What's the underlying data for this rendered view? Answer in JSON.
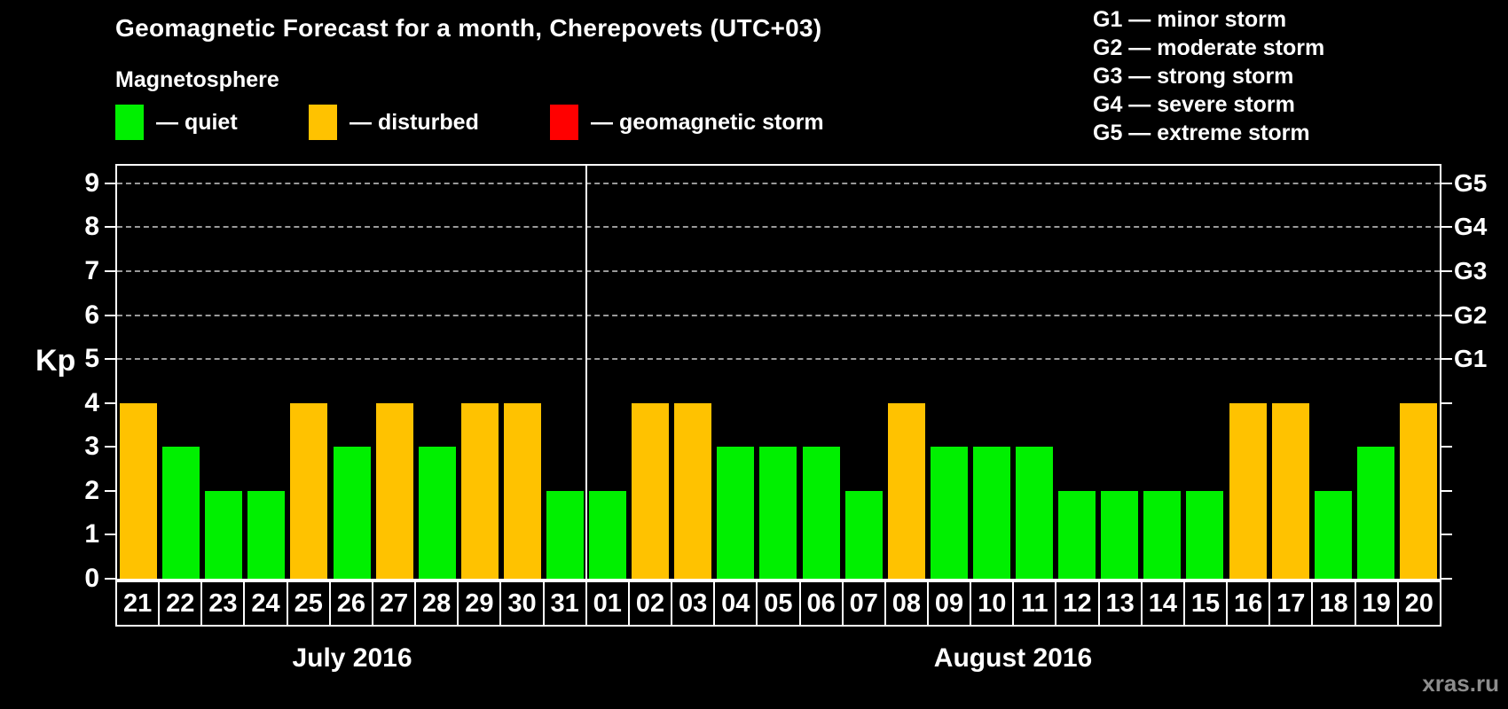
{
  "title": "Geomagnetic Forecast for a month, Cherepovets (UTC+03)",
  "subtitle": "Magnetosphere",
  "magnetosphere_legend": [
    {
      "name": "quiet-swatch",
      "label": "— quiet",
      "state": "quiet"
    },
    {
      "name": "disturbed-swatch",
      "label": "— disturbed",
      "state": "disturbed"
    },
    {
      "name": "storm-swatch",
      "label": "— geomagnetic storm",
      "state": "storm"
    }
  ],
  "g_scale_legend": [
    "G1 — minor storm",
    "G2 — moderate storm",
    "G3 — strong storm",
    "G4 — severe storm",
    "G5 — extreme storm"
  ],
  "watermark": "xras.ru",
  "colors": {
    "quiet": "#00f000",
    "disturbed": "#ffc200",
    "storm": "#ff0000",
    "axis": "#ffffff",
    "grid": "#9a9a9a",
    "watermark": "#8d8d8d"
  },
  "chart_data": {
    "type": "bar",
    "title": "Geomagnetic Forecast for a month, Cherepovets (UTC+03)",
    "xlabel": "",
    "ylabel": "Kp",
    "ylim": [
      0,
      9.4
    ],
    "yticks": [
      0,
      1,
      2,
      3,
      4,
      5,
      6,
      7,
      8,
      9
    ],
    "dashed_gridlines_at_kp": [
      5,
      6,
      7,
      8,
      9
    ],
    "right_axis_labels": [
      {
        "kp": 5,
        "label": "G1"
      },
      {
        "kp": 6,
        "label": "G2"
      },
      {
        "kp": 7,
        "label": "G3"
      },
      {
        "kp": 8,
        "label": "G4"
      },
      {
        "kp": 9,
        "label": "G5"
      }
    ],
    "x_groups": [
      {
        "label": "July 2016",
        "count": 11
      },
      {
        "label": "August 2016",
        "count": 20
      }
    ],
    "categories": [
      "21",
      "22",
      "23",
      "24",
      "25",
      "26",
      "27",
      "28",
      "29",
      "30",
      "31",
      "01",
      "02",
      "03",
      "04",
      "05",
      "06",
      "07",
      "08",
      "09",
      "10",
      "11",
      "12",
      "13",
      "14",
      "15",
      "16",
      "17",
      "18",
      "19",
      "20"
    ],
    "values": [
      4,
      3,
      2,
      2,
      4,
      3,
      4,
      3,
      4,
      4,
      2,
      2,
      4,
      4,
      3,
      3,
      3,
      2,
      4,
      3,
      3,
      3,
      2,
      2,
      2,
      2,
      4,
      4,
      2,
      3,
      4
    ],
    "states": [
      "disturbed",
      "quiet",
      "quiet",
      "quiet",
      "disturbed",
      "quiet",
      "disturbed",
      "quiet",
      "disturbed",
      "disturbed",
      "quiet",
      "quiet",
      "disturbed",
      "disturbed",
      "quiet",
      "quiet",
      "quiet",
      "quiet",
      "disturbed",
      "quiet",
      "quiet",
      "quiet",
      "quiet",
      "quiet",
      "quiet",
      "quiet",
      "disturbed",
      "disturbed",
      "quiet",
      "quiet",
      "disturbed"
    ],
    "legend_position": "top-left",
    "grid": "dashed horizontal at G-storm levels only"
  }
}
